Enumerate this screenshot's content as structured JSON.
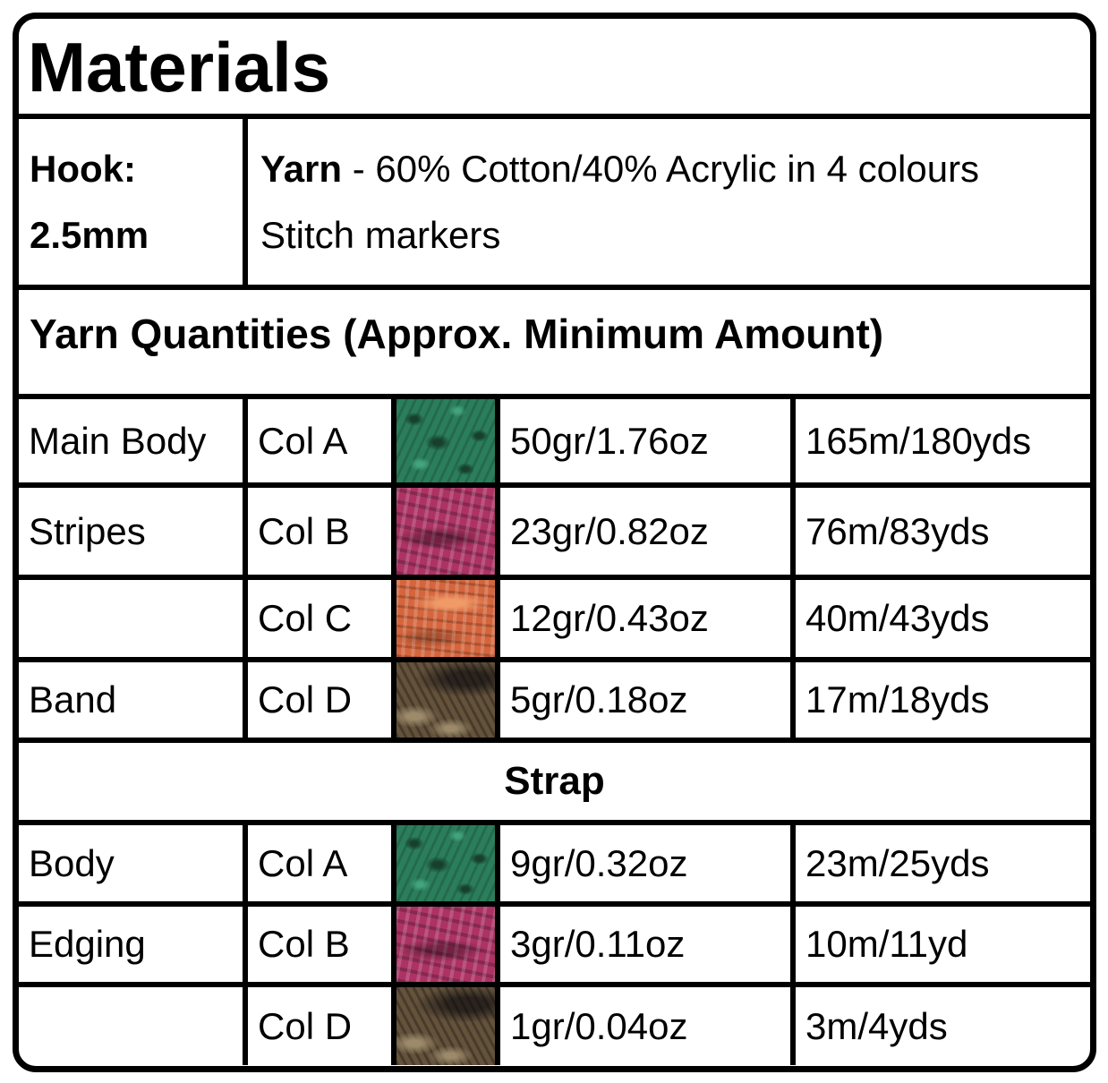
{
  "title": "Materials",
  "hook": {
    "label": "Hook:",
    "size": "2.5mm"
  },
  "yarn_notes": {
    "lead": "Yarn",
    "description": " - 60% Cotton/40% Acrylic in 4 colours",
    "extra": "Stitch markers"
  },
  "quantities_header": "Yarn Quantities (Approx. Minimum Amount)",
  "main_rows": [
    {
      "part": "Main Body",
      "colour": "Col A",
      "swatch": "green-yarn",
      "weight": "50gr/1.76oz",
      "length": "165m/180yds"
    },
    {
      "part": "Stripes",
      "colour": "Col B",
      "swatch": "pink-yarn",
      "weight": "23gr/0.82oz",
      "length": "76m/83yds"
    },
    {
      "part": "",
      "colour": "Col C",
      "swatch": "orange-yarn",
      "weight": "12gr/0.43oz",
      "length": "40m/43yds"
    },
    {
      "part": "Band",
      "colour": "Col D",
      "swatch": "brown-yarn",
      "weight": "5gr/0.18oz",
      "length": "17m/18yds"
    }
  ],
  "strap": {
    "header": "Strap",
    "rows": [
      {
        "part": "Body",
        "colour": "Col A",
        "swatch": "green-yarn",
        "weight": "9gr/0.32oz",
        "length": "23m/25yds"
      },
      {
        "part": "Edging",
        "colour": "Col B",
        "swatch": "pink-yarn",
        "weight": "3gr/0.11oz",
        "length": "10m/11yd"
      },
      {
        "part": "",
        "colour": "Col D",
        "swatch": "brown-yarn",
        "weight": "1gr/0.04oz",
        "length": "3m/4yds"
      }
    ]
  },
  "swatches": {
    "green-yarn": {
      "base": "#2B7E5C",
      "dark": "#16402C",
      "light": "#43A47C"
    },
    "pink-yarn": {
      "base": "#AD3365",
      "dark": "#701B40",
      "light": "#CE5E8E"
    },
    "orange-yarn": {
      "base": "#D5653C",
      "dark": "#A03C1E",
      "light": "#F09A68"
    },
    "brown-yarn": {
      "base": "#64523B",
      "dark": "#221D17",
      "light": "#9C8A6B"
    }
  }
}
